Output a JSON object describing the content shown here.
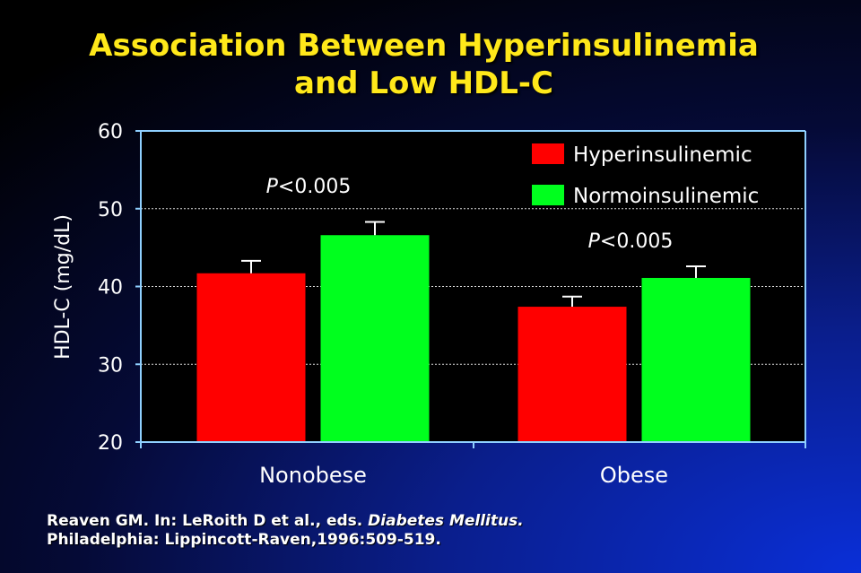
{
  "title_line1": "Association Between Hyperinsulinemia",
  "title_line2": "and Low HDL-C",
  "citation": {
    "line1_prefix": "Reaven GM. In: LeRoith D et al., eds. ",
    "line1_italic": "Diabetes Mellitus.",
    "line2": "Philadelphia: Lippincott-Raven,1996:509-519."
  },
  "colors": {
    "hyper": "#ff0000",
    "normo": "#00ff1e",
    "plot_bg": "#000000",
    "axis": "#8fd0ff",
    "title": "#ffe81a"
  },
  "chart_data": {
    "type": "bar",
    "title": "Association Between Hyperinsulinemia and Low HDL-C",
    "ylabel": "HDL-C (mg/dL)",
    "xlabel": "",
    "ylim": [
      20,
      60
    ],
    "yticks": [
      20,
      30,
      40,
      50,
      60
    ],
    "gridlines": [
      30,
      40,
      50
    ],
    "categories": [
      "Nonobese",
      "Obese"
    ],
    "series": [
      {
        "name": "Hyperinsulinemic",
        "values": [
          41.7,
          37.4
        ],
        "errors": [
          1.6,
          1.3
        ]
      },
      {
        "name": "Normoinsulinemic",
        "values": [
          46.6,
          41.1
        ],
        "errors": [
          1.7,
          1.5
        ]
      }
    ],
    "annotations": [
      {
        "category": "Nonobese",
        "text": "P<0.005"
      },
      {
        "category": "Obese",
        "text": "P<0.005"
      }
    ],
    "legend": "top-right"
  }
}
